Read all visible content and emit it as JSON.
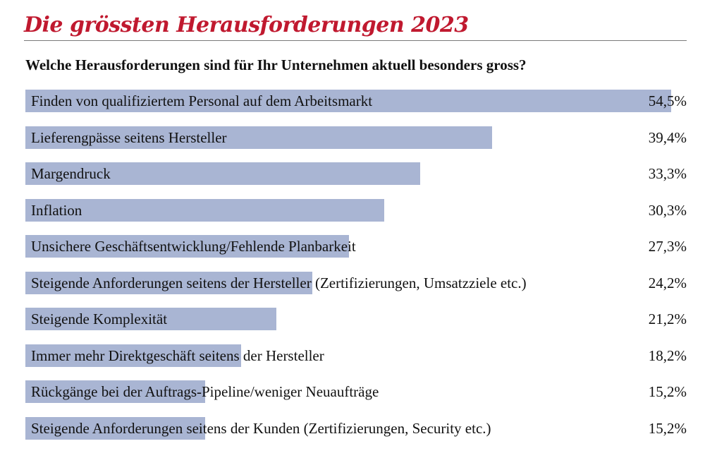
{
  "chart_data": {
    "type": "bar",
    "orientation": "horizontal",
    "title": "Die grössten Herausforderungen 2023",
    "subtitle": "Welche Herausforderungen sind für Ihr Unternehmen aktuell besonders gross?",
    "bar_color": "#a9b5d3",
    "title_color": "#c0192f",
    "xlim": [
      0,
      54.5
    ],
    "categories": [
      "Finden von qualifiziertem Personal auf dem Arbeitsmarkt",
      "Lieferengpässe seitens Hersteller",
      "Margendruck",
      "Inflation",
      "Unsichere Geschäftsentwicklung/Fehlende Planbarkeit",
      "Steigende Anforderungen seitens der Hersteller (Zertifizierungen, Umsatzziele etc.)",
      "Steigende Komplexität",
      "Immer mehr Direktgeschäft seitens der Hersteller",
      "Rückgänge bei der Auftrags-Pipeline/weniger Neuaufträge",
      "Steigende Anforderungen seitens der Kunden (Zertifizierungen, Security etc.)"
    ],
    "values": [
      54.5,
      39.4,
      33.3,
      30.3,
      27.3,
      24.2,
      21.2,
      18.2,
      15.2,
      15.2
    ],
    "value_labels": [
      "54,5%",
      "39,4%",
      "33,3%",
      "30,3%",
      "27,3%",
      "24,2%",
      "21,2%",
      "18,2%",
      "15,2%",
      "15,2%"
    ]
  }
}
